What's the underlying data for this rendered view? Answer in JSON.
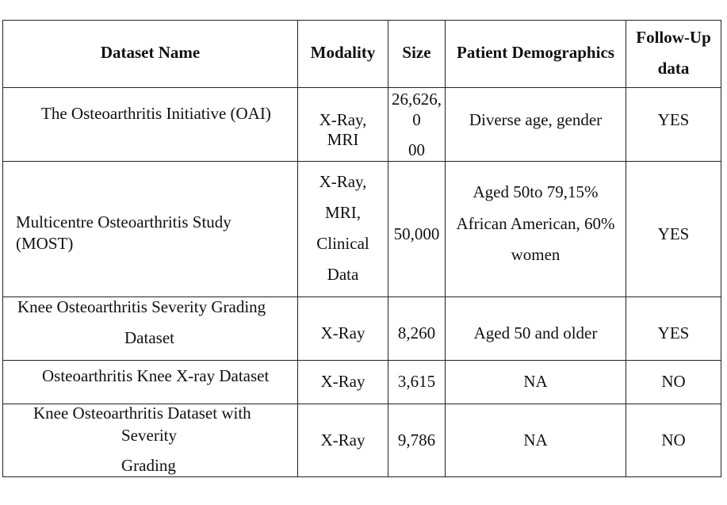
{
  "table": {
    "headers": {
      "dataset_name": "Dataset Name",
      "modality": "Modality",
      "size": "Size",
      "patient_demographics": "Patient Demographics",
      "follow_up_line1": "Follow-Up",
      "follow_up_line2": "data"
    },
    "rows": [
      {
        "name": "The Osteoarthritis Initiative (OAI)",
        "modality_line1": "X-Ray,",
        "modality_line2": "MRI",
        "size_line1": "26,626,",
        "size_line2": "0",
        "size_line3": "00",
        "demographics": "Diverse age, gender",
        "follow_up": "YES"
      },
      {
        "name_line1": "Multicentre Osteoarthritis Study",
        "name_line2": "(MOST)",
        "modality_line1": "X-Ray,",
        "modality_line2": "MRI,",
        "modality_line3": "Clinical",
        "modality_line4": "Data",
        "size": "50,000",
        "demographics_line1": "Aged 50to 79,15%",
        "demographics_line2": "African American, 60%",
        "demographics_line3": "women",
        "follow_up": "YES"
      },
      {
        "name_line1": "Knee Osteoarthritis Severity Grading",
        "name_line2": "Dataset",
        "modality": "X-Ray",
        "size": "8,260",
        "demographics": "Aged 50 and older",
        "follow_up": "YES"
      },
      {
        "name": "Osteoarthritis Knee X-ray Dataset",
        "modality": "X-Ray",
        "size": "3,615",
        "demographics": "NA",
        "follow_up": "NO"
      },
      {
        "name_line1": "Knee Osteoarthritis Dataset with",
        "name_line2": "Severity",
        "name_line3": "Grading",
        "modality": "X-Ray",
        "size": "9,786",
        "demographics": "NA",
        "follow_up": "NO"
      }
    ]
  }
}
